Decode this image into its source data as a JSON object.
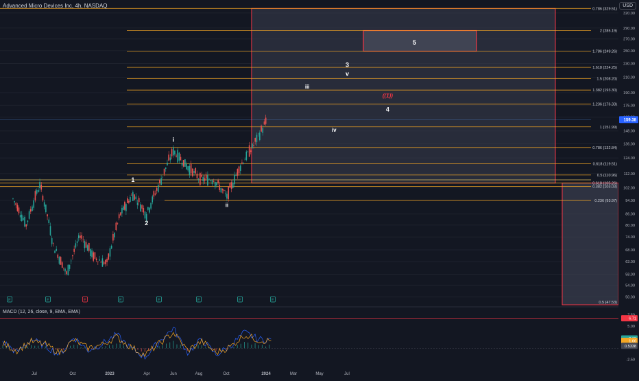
{
  "header": {
    "symbol_title": "Advanced Micro Devices Inc, 4h, NASDAQ",
    "currency": "USD"
  },
  "chart_data": [
    {
      "type": "candlestick",
      "title": "Advanced Micro Devices Inc, 4h, NASDAQ",
      "x_ticks": [
        "Jul",
        "Oct",
        "2023",
        "Apr",
        "Jun",
        "Aug",
        "Oct",
        "2024",
        "Mar",
        "May",
        "Jul"
      ],
      "y_ticks": [
        50.0,
        54.0,
        58.0,
        63.0,
        68.0,
        74.0,
        80.0,
        86.0,
        94.0,
        102.0,
        112.0,
        124.0,
        136.0,
        148.0,
        162.0,
        175.0,
        190.0,
        210.0,
        230.0,
        250.0,
        270.0,
        290.0,
        320.0
      ],
      "y_scale": "log",
      "y_range": [
        47.53,
        329.51
      ],
      "last_price": "159.38",
      "series_approx": {
        "name": "",
        "dates": [
          "2022-06",
          "2022-07",
          "2022-08",
          "2022-09",
          "2022-10",
          "2022-11",
          "2022-12",
          "2023-01",
          "2023-02",
          "2023-03",
          "2023-04",
          "2023-05",
          "2023-06",
          "2023-07",
          "2023-08",
          "2023-09",
          "2023-10",
          "2023-11",
          "2023-12",
          "2024-01"
        ],
        "close": [
          95,
          80,
          104,
          70,
          58,
          75,
          65,
          62,
          86,
          98,
          86,
          105,
          130,
          118,
          108,
          108,
          96,
          118,
          135,
          159
        ]
      },
      "fib_levels": [
        {
          "label": "0.786 (329.51)",
          "value": 329.51
        },
        {
          "label": "2 (285.19)",
          "value": 285.19
        },
        {
          "label": "1.786 (249.26)",
          "value": 249.26
        },
        {
          "label": "1.618 (224.25)",
          "value": 224.25
        },
        {
          "label": "1.5 (208.20)",
          "value": 208.2
        },
        {
          "label": "1.382 (193.30)",
          "value": 193.3
        },
        {
          "label": "1.236 (176.33)",
          "value": 176.33
        },
        {
          "label": "1 (151.99)",
          "value": 151.99
        },
        {
          "label": "0.786 (132.84)",
          "value": 132.84
        },
        {
          "label": "0.618 (119.51)",
          "value": 119.51
        },
        {
          "label": "0.5 (110.96)",
          "value": 110.96
        },
        {
          "label": "0.618 (105.26)",
          "value": 105.26
        },
        {
          "label": "0.382 (103.03)",
          "value": 103.03
        },
        {
          "label": "0.236 (93.97)",
          "value": 93.97
        },
        {
          "label": "0.5 (47.53)",
          "value": 47.53
        }
      ],
      "wave_labels": [
        {
          "text": "1",
          "date": "2023-03",
          "price": 106
        },
        {
          "text": "2",
          "date": "2023-04",
          "price": 80
        },
        {
          "text": "i",
          "date": "2023-06",
          "price": 138
        },
        {
          "text": "ii",
          "date": "2023-10",
          "price": 90
        },
        {
          "text": "iii",
          "date": "2024-04",
          "price": 195
        },
        {
          "text": "iv",
          "date": "2024-06",
          "price": 147
        },
        {
          "text": "3",
          "date": "2024-07",
          "price": 225
        },
        {
          "text": "v",
          "date": "2024-07",
          "price": 212
        },
        {
          "text": "((1))",
          "date": "2024-10",
          "price": 184
        },
        {
          "text": "4",
          "date": "2024-10",
          "price": 168
        },
        {
          "text": "5",
          "date": "2024-12",
          "price": 260
        }
      ],
      "event_markers": [
        "E",
        "E",
        "E",
        "E",
        "E",
        "E",
        "E",
        "E"
      ],
      "colors": {
        "up": "#26a69a",
        "down": "#ef5350",
        "fib_line": "#f5a623",
        "zone_border": "#f23645",
        "zone_fill": "#3a3e4f",
        "last_price_badge": "#5b9cf6"
      }
    },
    {
      "type": "line",
      "title": "MACD (12, 26, close, 9, EMA, EMA)",
      "y_ticks": [
        7.5,
        5.0,
        2.5,
        -2.5
      ],
      "readouts": [
        {
          "label": "6.71",
          "color": "#f23645"
        },
        {
          "label": "2.19",
          "color": "#26a69a"
        },
        {
          "label": "1.66",
          "color": "#f5a623"
        },
        {
          "label": "0.5338",
          "color": "#434651"
        }
      ],
      "series": [
        {
          "values": [
            1.5,
            -1.0,
            2.0,
            0.5,
            -1.5,
            2.5,
            -0.5,
            1.0,
            3.0,
            0.0,
            -2.0,
            1.5,
            4.5,
            -1.0,
            2.0,
            -1.5,
            0.5,
            3.5,
            2.0,
            1.8
          ]
        },
        {
          "values": [
            1.0,
            -0.5,
            1.5,
            0.8,
            -1.0,
            1.8,
            0.0,
            0.8,
            2.5,
            0.3,
            -1.5,
            1.0,
            3.5,
            -0.5,
            1.5,
            -1.0,
            0.3,
            3.0,
            1.8,
            1.6
          ]
        }
      ]
    }
  ]
}
